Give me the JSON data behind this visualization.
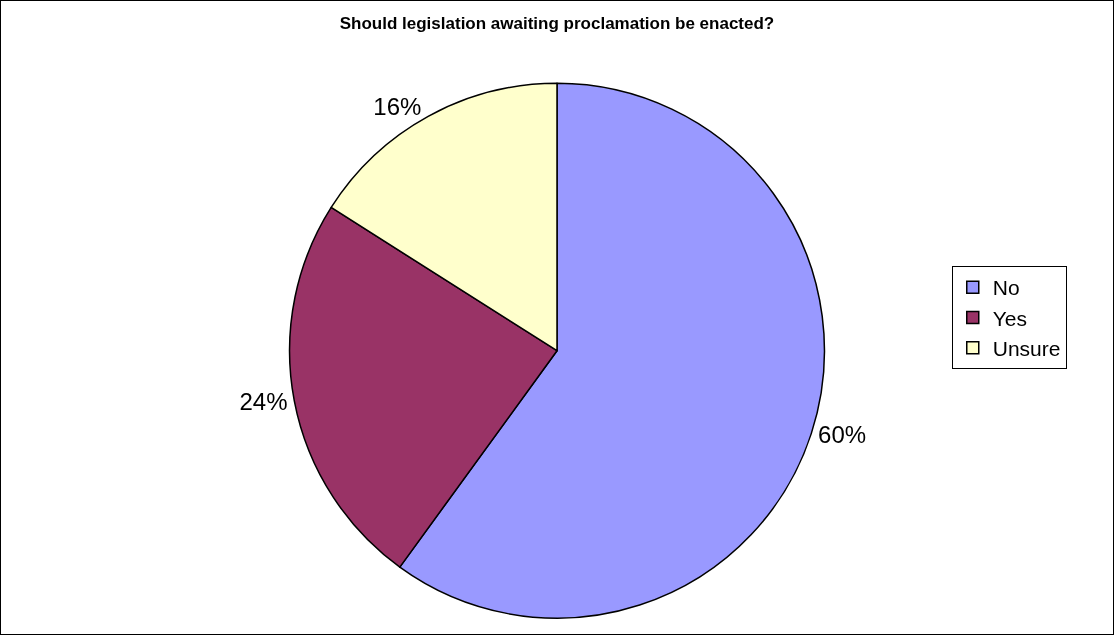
{
  "chart_data": {
    "type": "pie",
    "title": "Should legislation awaiting proclamation be enacted?",
    "categories": [
      "No",
      "Yes",
      "Unsure"
    ],
    "values": [
      60,
      24,
      16
    ],
    "value_labels": [
      "60%",
      "24%",
      "16%"
    ],
    "colors": [
      "#9999ff",
      "#993366",
      "#ffffcc"
    ],
    "legend": "right"
  }
}
